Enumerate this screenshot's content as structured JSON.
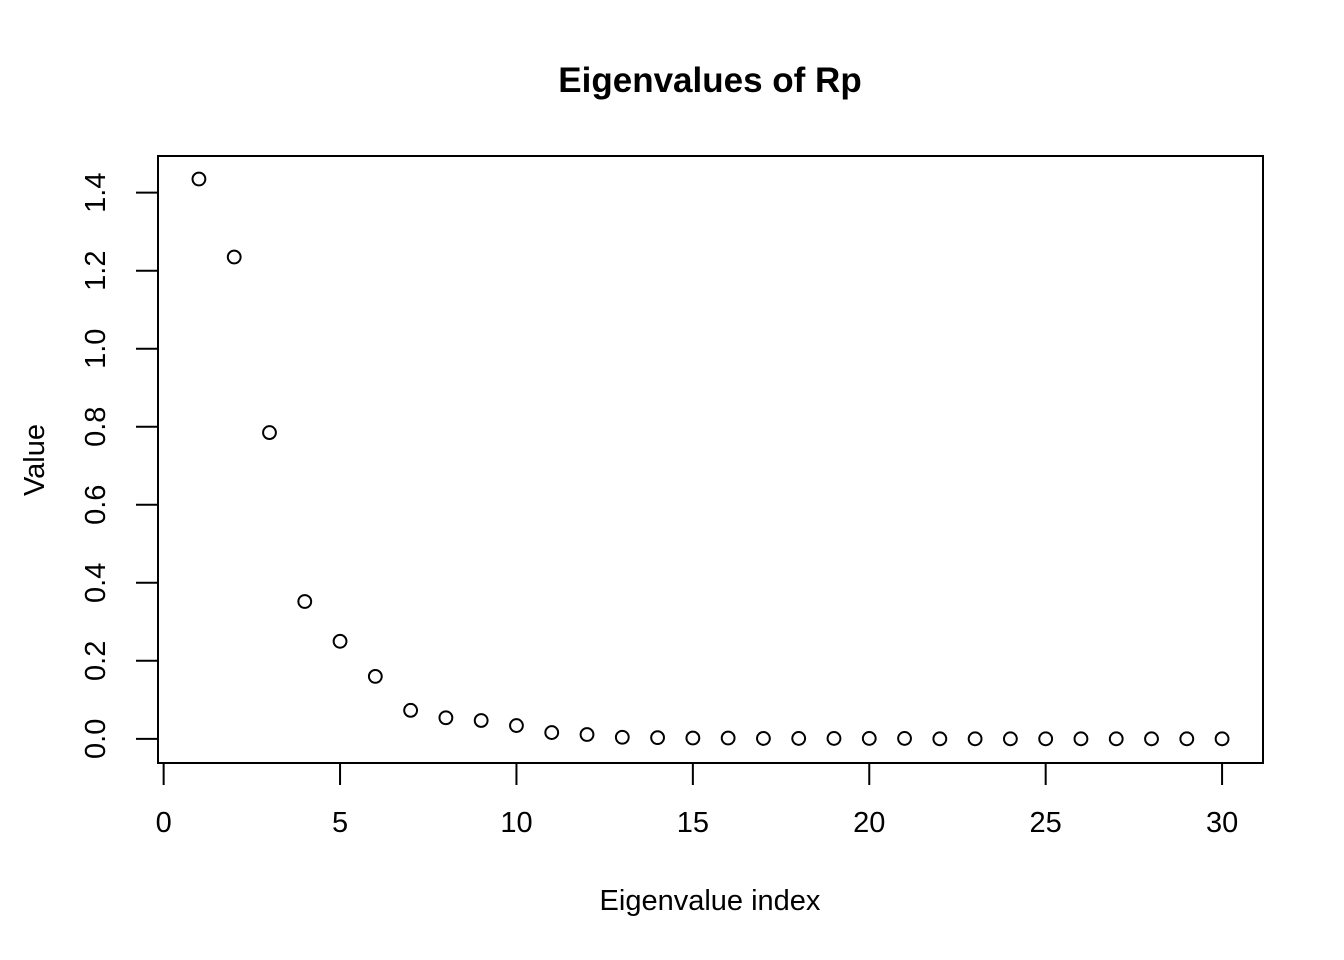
{
  "page": {
    "background_color": "#ffffff",
    "foreground_color": "#000000"
  },
  "chart_data": {
    "type": "scatter",
    "title": "Eigenvalues of Rp",
    "xlabel": "Eigenvalue index",
    "ylabel": "Value",
    "x": [
      1,
      2,
      3,
      4,
      5,
      6,
      7,
      8,
      9,
      10,
      11,
      12,
      13,
      14,
      15,
      16,
      17,
      18,
      19,
      20,
      21,
      22,
      23,
      24,
      25,
      26,
      27,
      28,
      29,
      30
    ],
    "y": [
      1.435,
      1.235,
      0.785,
      0.352,
      0.25,
      0.16,
      0.073,
      0.054,
      0.047,
      0.034,
      0.016,
      0.011,
      0.004,
      0.003,
      0.002,
      0.002,
      0.001,
      0.001,
      0.001,
      0.001,
      0.001,
      0.0,
      0.0,
      0.0,
      0.0,
      0.0,
      0.0,
      0.0,
      0.0,
      0.0
    ],
    "xlim": [
      -0.16,
      31.16
    ],
    "ylim": [
      -0.062,
      1.494
    ],
    "xticks": {
      "values": [
        0,
        5,
        10,
        15,
        20,
        25,
        30
      ],
      "labels": [
        "0",
        "5",
        "10",
        "15",
        "20",
        "25",
        "30"
      ]
    },
    "yticks": {
      "values": [
        0.0,
        0.2,
        0.4,
        0.6,
        0.8,
        1.0,
        1.2,
        1.4
      ],
      "labels": [
        "0.0",
        "0.2",
        "0.4",
        "0.6",
        "0.8",
        "1.0",
        "1.2",
        "1.4"
      ]
    },
    "marker": {
      "shape": "open-circle",
      "color": "#000000"
    },
    "grid": false,
    "legend": "none"
  }
}
